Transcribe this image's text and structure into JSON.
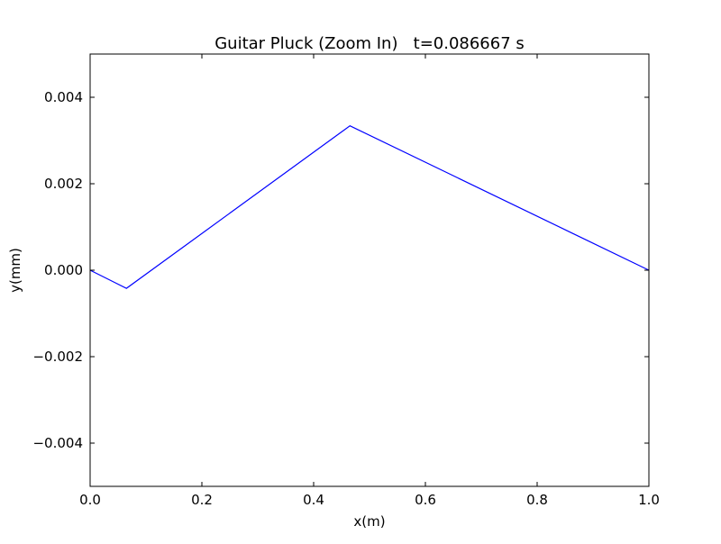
{
  "chart_data": {
    "type": "line",
    "title": "Guitar Pluck (Zoom In)   t=0.086667 s",
    "xlabel": "x(m)",
    "ylabel": "y(mm)",
    "xlim": [
      0.0,
      1.0
    ],
    "ylim": [
      -0.005,
      0.005
    ],
    "x_ticks": [
      0.0,
      0.2,
      0.4,
      0.6,
      0.8,
      1.0
    ],
    "x_tick_labels": [
      "0.0",
      "0.2",
      "0.4",
      "0.6",
      "0.8",
      "1.0"
    ],
    "y_ticks": [
      -0.004,
      -0.002,
      0.0,
      0.002,
      0.004
    ],
    "y_tick_labels": [
      "−0.004",
      "−0.002",
      "0.000",
      "0.002",
      "0.004"
    ],
    "grid": false,
    "series": [
      {
        "color": "#0000ff",
        "x": [
          0.0,
          0.065,
          0.465,
          1.0
        ],
        "y": [
          0.0,
          -0.00042,
          0.00334,
          0.0
        ]
      }
    ]
  }
}
